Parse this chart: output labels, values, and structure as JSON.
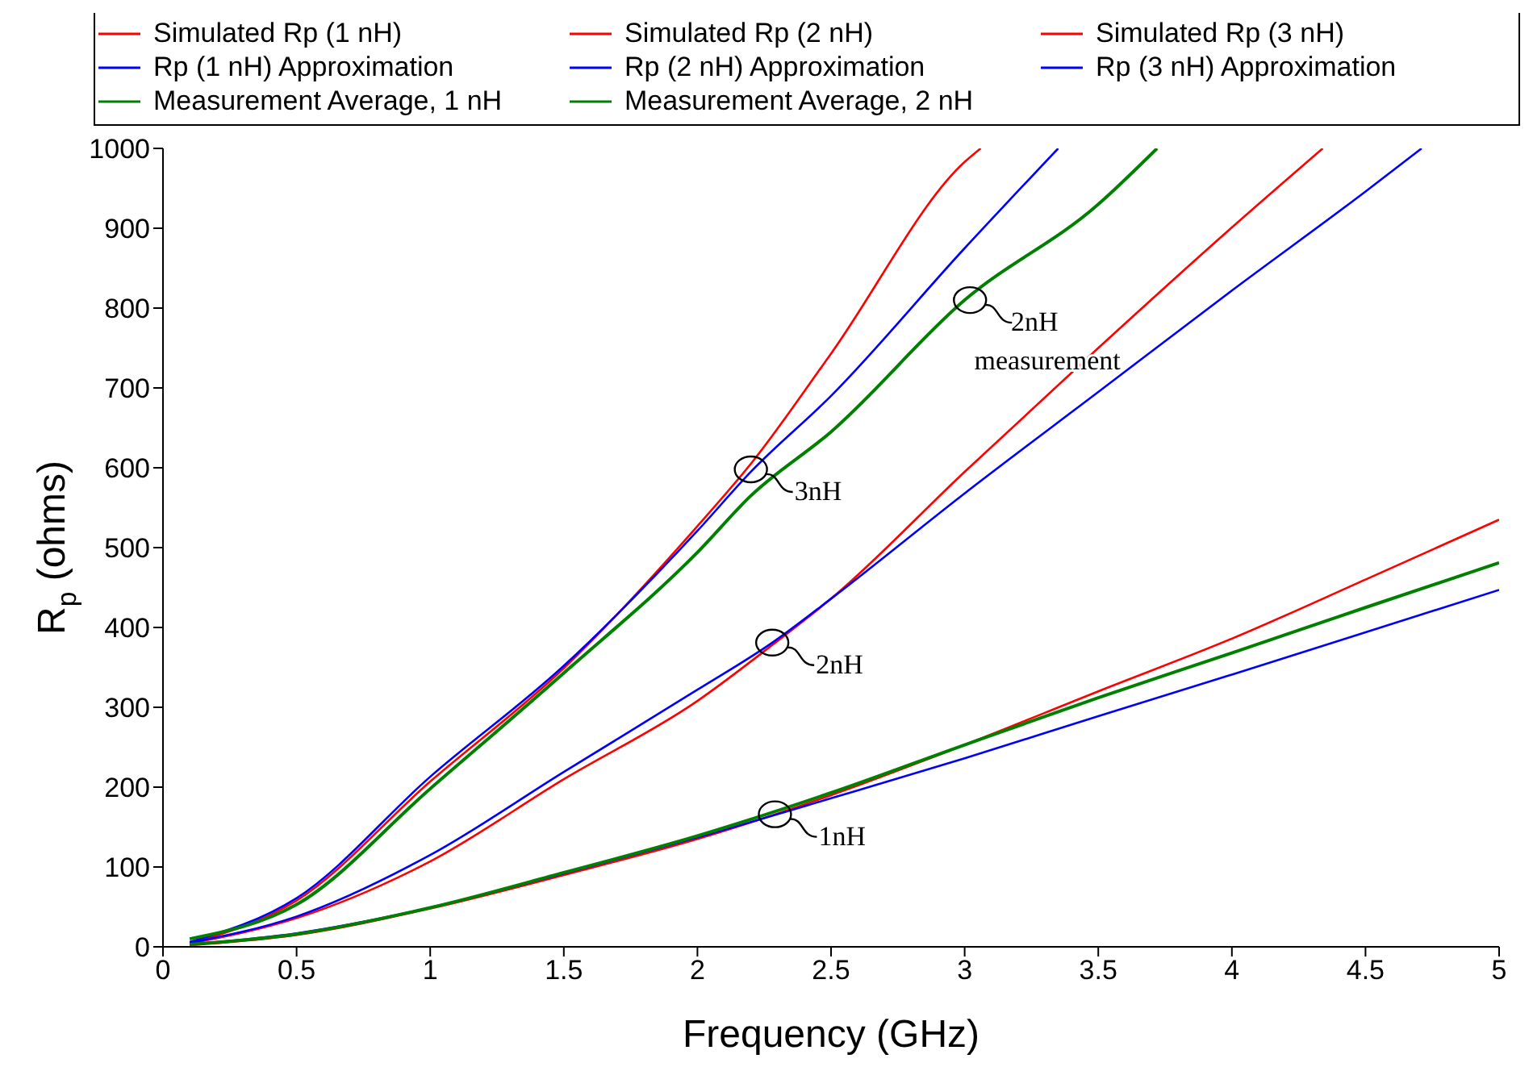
{
  "chart_data": {
    "type": "line",
    "xlabel": "Frequency (GHz)",
    "ylabel": "R$_{p}$ (ohms)",
    "xlim": [
      0,
      5
    ],
    "xticks": [
      0,
      0.5,
      1,
      1.5,
      2,
      2.5,
      3,
      3.5,
      4,
      4.5,
      5
    ],
    "ylim": [
      0,
      1000
    ],
    "yticks": [
      0,
      100,
      200,
      300,
      400,
      500,
      600,
      700,
      800,
      900,
      1000
    ],
    "grid": false,
    "legend": "top",
    "marker": "none",
    "line_style": "solid",
    "series": [
      {
        "name": "Simulated Rp (1 nH)",
        "color": "#ff0000",
        "x": [
          0.1,
          0.5,
          1,
          1.5,
          2,
          2.5,
          3,
          3.5,
          4,
          4.5,
          5
        ],
        "values": [
          2,
          15,
          48,
          90,
          135,
          190,
          253,
          320,
          386,
          460,
          535
        ]
      },
      {
        "name": "Simulated Rp (2 nH)",
        "color": "#ff0000",
        "x": [
          0.1,
          0.5,
          1,
          1.5,
          2,
          2.28,
          2.5,
          3,
          3.5,
          4,
          4.34
        ],
        "values": [
          4,
          36,
          107,
          210,
          308,
          378,
          436,
          595,
          750,
          901,
          1000
        ]
      },
      {
        "name": "Simulated Rp (3 nH)",
        "color": "#ff0000",
        "x": [
          0.1,
          0.5,
          1,
          1.5,
          2,
          2.2,
          2.5,
          3,
          3.06
        ],
        "values": [
          4,
          58,
          207,
          349,
          527,
          605,
          743,
          983,
          1000
        ]
      },
      {
        "name": "Rp (1 nH) Approximation",
        "color": "#0000ff",
        "x": [
          0.1,
          0.5,
          1,
          1.5,
          2,
          2.5,
          3,
          3.5,
          4,
          4.5,
          5
        ],
        "values": [
          3,
          17,
          49,
          92,
          137,
          186,
          236,
          289,
          341,
          394,
          447
        ]
      },
      {
        "name": "Rp (2 nH) Approximation",
        "color": "#0000ff",
        "x": [
          0.1,
          0.5,
          1,
          1.5,
          2,
          2.28,
          2.5,
          3,
          3.5,
          4,
          4.5,
          4.71
        ],
        "values": [
          5,
          38,
          115,
          219,
          322,
          381,
          436,
          568,
          695,
          822,
          946,
          1000
        ]
      },
      {
        "name": "Rp (3 nH) Approximation",
        "color": "#0000ff",
        "x": [
          0.1,
          0.5,
          1,
          1.5,
          2,
          2.2,
          2.5,
          3,
          3.35
        ],
        "values": [
          6,
          61,
          213,
          352,
          521,
          595,
          690,
          875,
          1000
        ]
      },
      {
        "name": "Measurement Average, 1 nH",
        "color": "#008000",
        "x": [
          0.1,
          0.5,
          1,
          1.5,
          2,
          2.5,
          3,
          3.5,
          4,
          4.5,
          5
        ],
        "values": [
          3,
          16,
          49,
          93,
          139,
          193,
          253,
          312,
          368,
          425,
          481
        ]
      },
      {
        "name": "Measurement Average, 2 nH",
        "color": "#008000",
        "x": [
          0.1,
          0.5,
          1,
          1.5,
          2,
          2.2,
          2.5,
          3,
          3.5,
          3.72
        ],
        "values": [
          10,
          53,
          198,
          343,
          494,
          565,
          645,
          810,
          930,
          1000
        ]
      }
    ],
    "annotations": [
      {
        "text": "3nH",
        "x": 2.2,
        "y": 598
      },
      {
        "text": "2nH",
        "x": 2.28,
        "y": 381
      },
      {
        "text": "1nH",
        "x": 2.29,
        "y": 166
      },
      {
        "text": "2nH measurement",
        "x": 3.02,
        "y": 810
      }
    ]
  }
}
